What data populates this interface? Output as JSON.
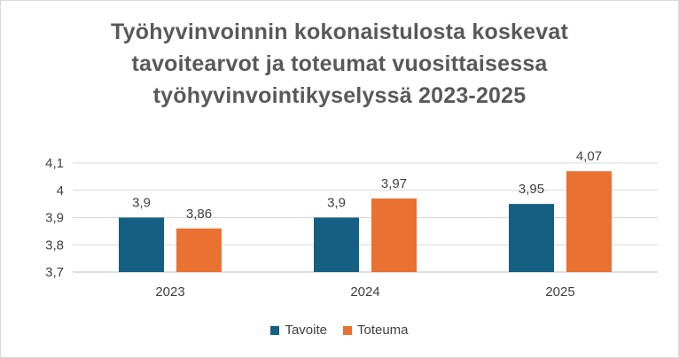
{
  "chart_data": {
    "type": "bar",
    "title_lines": [
      "Työhyvinvoinnin kokonaistulosta koskevat",
      "tavoitearvot ja toteumat vuosittaisessa",
      "työhyvinvointikyselyssä 2023-2025"
    ],
    "categories": [
      "2023",
      "2024",
      "2025"
    ],
    "series": [
      {
        "name": "Tavoite",
        "color": "#156082",
        "values": [
          3.9,
          3.9,
          3.95
        ],
        "labels": [
          "3,9",
          "3,9",
          "3,95"
        ]
      },
      {
        "name": "Toteuma",
        "color": "#E97132",
        "values": [
          3.86,
          3.97,
          4.07
        ],
        "labels": [
          "3,86",
          "3,97",
          "4,07"
        ]
      }
    ],
    "ylim": [
      3.7,
      4.1
    ],
    "yticks": [
      3.7,
      3.8,
      3.9,
      4.0,
      4.1
    ],
    "ytick_labels": [
      "3,7",
      "3,8",
      "3,9",
      "4",
      "4,1"
    ],
    "grid": true,
    "legend_position": "bottom",
    "xlabel": "",
    "ylabel": ""
  }
}
